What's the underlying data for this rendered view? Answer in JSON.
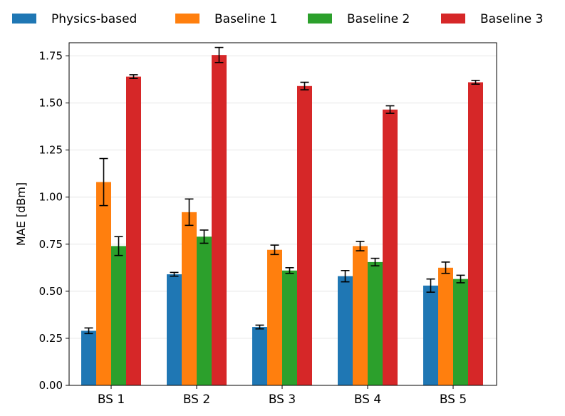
{
  "chart_data": {
    "type": "bar",
    "categories": [
      "BS 1",
      "BS 2",
      "BS 3",
      "BS 4",
      "BS 5"
    ],
    "series": [
      {
        "name": "Physics-based",
        "color": "#1f77b4",
        "values": [
          0.29,
          0.59,
          0.31,
          0.58,
          0.53
        ],
        "errors": [
          0.015,
          0.01,
          0.01,
          0.03,
          0.035
        ]
      },
      {
        "name": "Baseline 1",
        "color": "#ff7f0e",
        "values": [
          1.08,
          0.92,
          0.72,
          0.74,
          0.625
        ],
        "errors": [
          0.125,
          0.07,
          0.025,
          0.025,
          0.03
        ]
      },
      {
        "name": "Baseline 2",
        "color": "#2ca02c",
        "values": [
          0.74,
          0.79,
          0.61,
          0.655,
          0.565
        ],
        "errors": [
          0.05,
          0.035,
          0.015,
          0.02,
          0.02
        ]
      },
      {
        "name": "Baseline 3",
        "color": "#d62728",
        "values": [
          1.64,
          1.755,
          1.59,
          1.465,
          1.61
        ],
        "errors": [
          0.01,
          0.04,
          0.02,
          0.02,
          0.01
        ]
      }
    ],
    "ylabel": "MAE [dBm]",
    "xlabel": "",
    "title": "",
    "ylim": [
      0,
      1.75
    ],
    "yticks": [
      "0.00",
      "0.25",
      "0.50",
      "0.75",
      "1.00",
      "1.25",
      "1.50",
      "1.75"
    ],
    "grid": "horizontal",
    "legend_position": "top"
  }
}
